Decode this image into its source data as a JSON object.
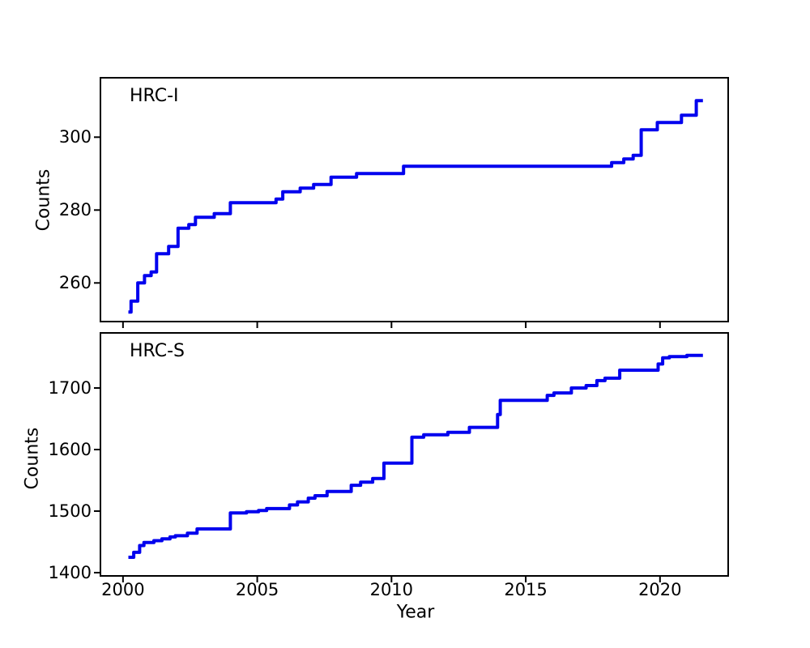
{
  "figure": {
    "background": "#ffffff",
    "text_color": "#000000",
    "spine_color": "#000000",
    "xlabel": "Year"
  },
  "chart_data": [
    {
      "type": "line",
      "line_style": "step-post",
      "annotation": "HRC-I",
      "ylabel": "Counts",
      "xlabel": "",
      "line_color": "#0000ee",
      "grid": false,
      "legend": "none",
      "xlim": [
        1999.16,
        2022.54
      ],
      "ylim": [
        249.4,
        316.3
      ],
      "xticks": [
        2000,
        2005,
        2010,
        2015,
        2020
      ],
      "xtick_labels_visible": false,
      "yticks": [
        260,
        280,
        300
      ],
      "end_year": 2021.6,
      "points": [
        [
          2000.2,
          252
        ],
        [
          2000.3,
          255
        ],
        [
          2000.55,
          260
        ],
        [
          2000.8,
          262
        ],
        [
          2001.05,
          263
        ],
        [
          2001.25,
          268
        ],
        [
          2001.7,
          270
        ],
        [
          2002.05,
          275
        ],
        [
          2002.45,
          276
        ],
        [
          2002.7,
          278
        ],
        [
          2003.4,
          279
        ],
        [
          2004.0,
          282
        ],
        [
          2005.7,
          283
        ],
        [
          2005.95,
          285
        ],
        [
          2006.6,
          286
        ],
        [
          2007.1,
          287
        ],
        [
          2007.75,
          289
        ],
        [
          2008.7,
          290
        ],
        [
          2010.45,
          292
        ],
        [
          2018.2,
          293
        ],
        [
          2018.65,
          294
        ],
        [
          2019.0,
          295
        ],
        [
          2019.3,
          302
        ],
        [
          2019.9,
          304
        ],
        [
          2020.8,
          306
        ],
        [
          2021.35,
          310
        ]
      ]
    },
    {
      "type": "line",
      "line_style": "step-post",
      "annotation": "HRC-S",
      "ylabel": "Counts",
      "xlabel": "Year",
      "line_color": "#0000ee",
      "grid": false,
      "legend": "none",
      "xlim": [
        1999.16,
        2022.54
      ],
      "ylim": [
        1394.7,
        1789.5
      ],
      "xticks": [
        2000,
        2005,
        2010,
        2015,
        2020
      ],
      "xtick_labels_visible": true,
      "yticks": [
        1400,
        1500,
        1600,
        1700
      ],
      "end_year": 2021.6,
      "points": [
        [
          2000.2,
          1425
        ],
        [
          2000.4,
          1433
        ],
        [
          2000.62,
          1444
        ],
        [
          2000.78,
          1449
        ],
        [
          2001.15,
          1452
        ],
        [
          2001.45,
          1455
        ],
        [
          2001.75,
          1458
        ],
        [
          2001.95,
          1460
        ],
        [
          2002.4,
          1464
        ],
        [
          2002.76,
          1471
        ],
        [
          2004.0,
          1497
        ],
        [
          2004.6,
          1499
        ],
        [
          2005.05,
          1501
        ],
        [
          2005.35,
          1504
        ],
        [
          2006.2,
          1510
        ],
        [
          2006.5,
          1515
        ],
        [
          2006.9,
          1521
        ],
        [
          2007.15,
          1525
        ],
        [
          2007.6,
          1532
        ],
        [
          2008.5,
          1542
        ],
        [
          2008.85,
          1547
        ],
        [
          2009.3,
          1553
        ],
        [
          2009.72,
          1578
        ],
        [
          2010.76,
          1620
        ],
        [
          2011.2,
          1624
        ],
        [
          2012.1,
          1628
        ],
        [
          2012.9,
          1636
        ],
        [
          2013.95,
          1657
        ],
        [
          2014.05,
          1680
        ],
        [
          2015.8,
          1688
        ],
        [
          2016.05,
          1692
        ],
        [
          2016.7,
          1700
        ],
        [
          2017.25,
          1704
        ],
        [
          2017.65,
          1712
        ],
        [
          2017.95,
          1716
        ],
        [
          2018.5,
          1729
        ],
        [
          2019.93,
          1739
        ],
        [
          2020.1,
          1749
        ],
        [
          2020.35,
          1751
        ],
        [
          2021.0,
          1753
        ]
      ]
    }
  ]
}
